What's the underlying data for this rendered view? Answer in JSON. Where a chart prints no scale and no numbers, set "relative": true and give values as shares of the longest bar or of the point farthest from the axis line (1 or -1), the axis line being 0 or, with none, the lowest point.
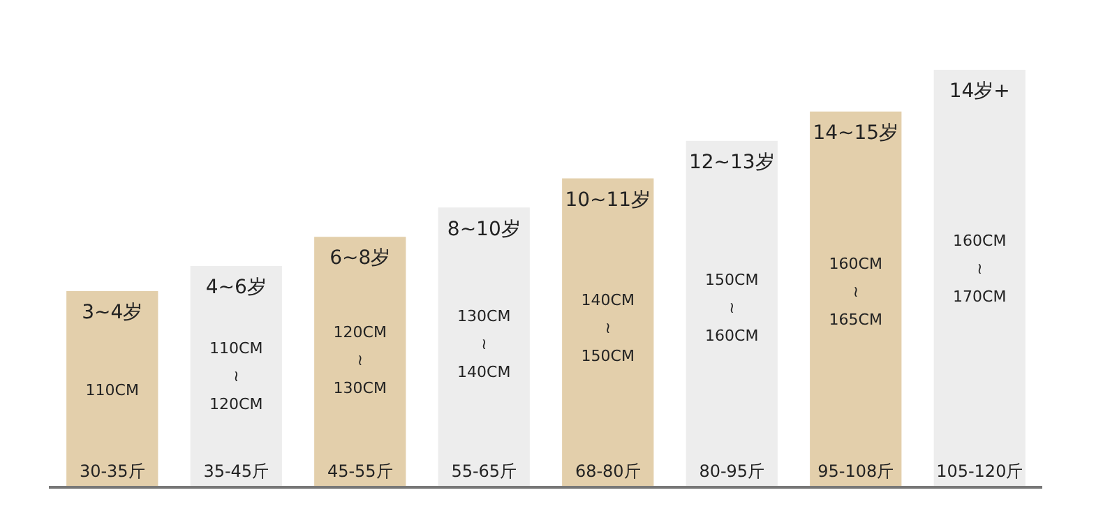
{
  "chart_data": {
    "type": "bar",
    "relative": true,
    "categories": [
      "30-35斤",
      "35-45斤",
      "45-55斤",
      "55-65斤",
      "68-80斤",
      "80-95斤",
      "95-108斤",
      "105-120斤"
    ],
    "values": [
      0.47,
      0.53,
      0.6,
      0.67,
      0.74,
      0.83,
      0.9,
      1
    ],
    "colors": [
      "#e3cfab",
      "#ededed",
      "#e3cfab",
      "#ededed",
      "#e3cfab",
      "#ededed",
      "#e3cfab",
      "#ededed"
    ],
    "annotations": [
      "3~4岁",
      "4~6岁",
      "6~8岁",
      "8~10岁",
      "10~11岁",
      "12~13岁",
      "14~15岁",
      "14岁+",
      "110CM",
      "110CM\n≀\n120CM",
      "120CM\n≀\n130CM",
      "130CM\n≀\n140CM",
      "140CM\n≀\n150CM",
      "150CM\n≀\n160CM",
      "160CM\n≀\n165CM",
      "160CM\n≀\n170CM"
    ]
  }
}
